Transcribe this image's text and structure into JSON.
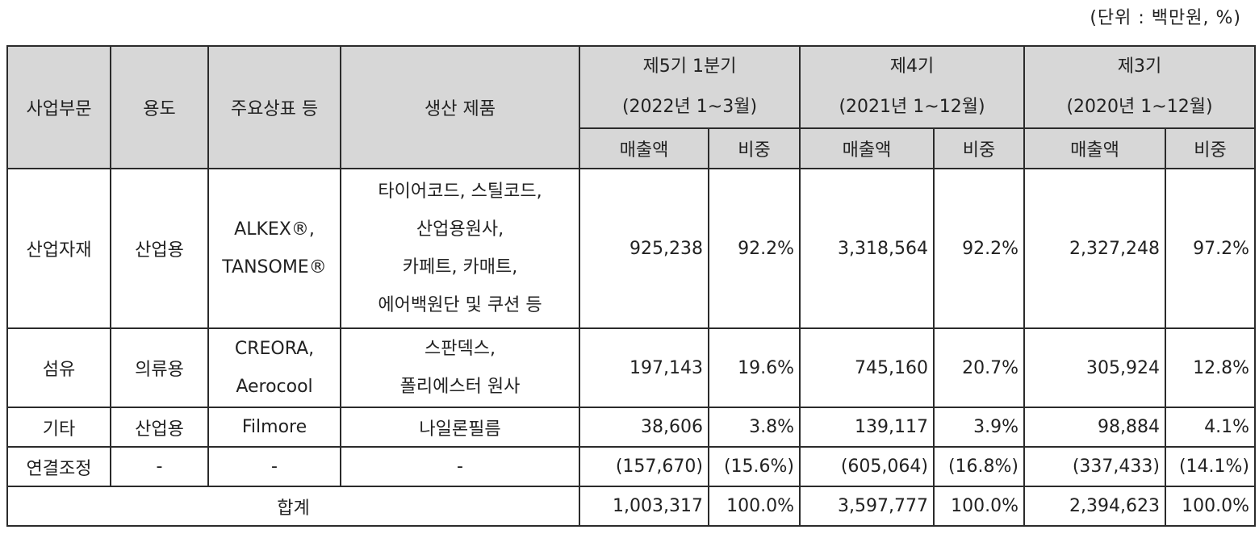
{
  "unit_note": "(단위 : 백만원, %)",
  "headers": {
    "segment": "사업부문",
    "usage": "용도",
    "brand": "주요상표 등",
    "products": "생산 제품",
    "periods": [
      {
        "name": "제5기 1분기",
        "range": "(2022년 1~3월)"
      },
      {
        "name": "제4기",
        "range": "(2021년 1~12월)"
      },
      {
        "name": "제3기",
        "range": "(2020년 1~12월)"
      }
    ],
    "sales": "매출액",
    "share": "비중"
  },
  "rows": [
    {
      "segment": "산업자재",
      "usage": "산업용",
      "brand": [
        "ALKEX®,",
        "TANSOME®"
      ],
      "products": [
        "타이어코드, 스틸코드,",
        "산업용원사,",
        "카페트, 카매트,",
        "에어백원단 및 쿠션 등"
      ],
      "values": [
        "925,238",
        "92.2%",
        "3,318,564",
        "92.2%",
        "2,327,248",
        "97.2%"
      ]
    },
    {
      "segment": "섬유",
      "usage": "의류용",
      "brand": [
        "CREORA,",
        "Aerocool"
      ],
      "products": [
        "스판덱스,",
        "폴리에스터 원사"
      ],
      "values": [
        "197,143",
        "19.6%",
        "745,160",
        "20.7%",
        "305,924",
        "12.8%"
      ]
    },
    {
      "segment": "기타",
      "usage": "산업용",
      "brand": [
        "Filmore"
      ],
      "products": [
        "나일론필름"
      ],
      "values": [
        "38,606",
        "3.8%",
        "139,117",
        "3.9%",
        "98,884",
        "4.1%"
      ]
    },
    {
      "segment": "연결조정",
      "usage": "-",
      "brand": [
        "-"
      ],
      "products": [
        "-"
      ],
      "values": [
        "(157,670)",
        "(15.6%)",
        "(605,064)",
        "(16.8%)",
        "(337,433)",
        "(14.1%)"
      ]
    }
  ],
  "total": {
    "label": "합계",
    "values": [
      "1,003,317",
      "100.0%",
      "3,597,777",
      "100.0%",
      "2,394,623",
      "100.0%"
    ]
  }
}
